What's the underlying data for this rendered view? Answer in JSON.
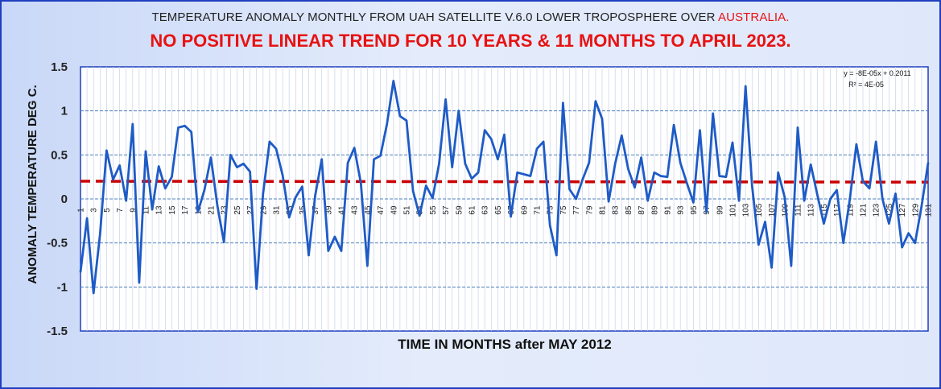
{
  "header": {
    "title_prefix": "TEMPERATURE ANOMALY MONTHLY FROM UAH SATELLITE V.6.0 LOWER TROPOSPHERE OVER ",
    "title_highlight": "AUSTRALIA.",
    "subtitle": "NO POSITIVE LINEAR TREND FOR 10 YEARS & 11 MONTHS TO APRIL 2023."
  },
  "colors": {
    "series": "#1e5bc6",
    "trend": "#cc0000",
    "grid_major": "#4f81bd",
    "grid_minor": "#c8d2e6",
    "title_highlight": "#e81212"
  },
  "chart_data": {
    "type": "line",
    "title": "TEMPERATURE ANOMALY MONTHLY FROM UAH SATELLITE V.6.0 LOWER TROPOSPHERE OVER AUSTRALIA.",
    "subtitle": "NO POSITIVE LINEAR TREND FOR 10 YEARS & 11 MONTHS TO APRIL 2023.",
    "xlabel": "TIME IN MONTHS after MAY 2012",
    "ylabel": "ANOMALY TEMPERATURE DEG C.",
    "xlim": [
      1,
      131
    ],
    "ylim": [
      -1.5,
      1.5
    ],
    "yticks": [
      1.5,
      1,
      0.5,
      0,
      -0.5,
      -1,
      -1.5
    ],
    "ytick_labels": [
      "1.5",
      "1",
      "0.5",
      "0",
      "-0.5",
      "-1",
      "-1.5"
    ],
    "xticks": [
      1,
      3,
      5,
      7,
      9,
      11,
      13,
      15,
      17,
      19,
      21,
      23,
      25,
      27,
      29,
      31,
      33,
      35,
      37,
      39,
      41,
      43,
      45,
      47,
      49,
      51,
      53,
      55,
      57,
      59,
      61,
      63,
      65,
      67,
      69,
      71,
      73,
      75,
      77,
      79,
      81,
      83,
      85,
      87,
      89,
      91,
      93,
      95,
      97,
      99,
      101,
      103,
      105,
      107,
      109,
      111,
      113,
      115,
      117,
      119,
      121,
      123,
      125,
      127,
      129,
      131
    ],
    "grid": true,
    "trendline": {
      "equation": "y = -8E-05x + 0.2011",
      "r_squared": "R² = 4E-05",
      "slope": -8e-05,
      "intercept": 0.2011,
      "style": "dashed"
    },
    "series": [
      {
        "values": [
          -0.83,
          -0.22,
          -1.07,
          -0.4,
          0.55,
          0.22,
          0.38,
          -0.02,
          0.85,
          -0.95,
          0.54,
          -0.12,
          0.37,
          0.12,
          0.25,
          0.81,
          0.83,
          0.76,
          -0.15,
          0.1,
          0.47,
          -0.08,
          -0.49,
          0.5,
          0.36,
          0.4,
          0.31,
          -1.02,
          0.06,
          0.65,
          0.57,
          0.27,
          -0.21,
          0.02,
          0.14,
          -0.64,
          0.04,
          0.45,
          -0.59,
          -0.43,
          -0.59,
          0.41,
          0.58,
          0.18,
          -0.76,
          0.45,
          0.49,
          0.85,
          1.34,
          0.94,
          0.89,
          0.09,
          -0.19,
          0.15,
          0.01,
          0.4,
          1.13,
          0.36,
          1.0,
          0.4,
          0.23,
          0.3,
          0.78,
          0.68,
          0.45,
          0.73,
          -0.2,
          0.3,
          0.28,
          0.26,
          0.57,
          0.65,
          -0.3,
          -0.64,
          1.09,
          0.11,
          0.0,
          0.22,
          0.41,
          1.11,
          0.91,
          -0.03,
          0.4,
          0.72,
          0.34,
          0.13,
          0.47,
          -0.02,
          0.3,
          0.26,
          0.25,
          0.84,
          0.41,
          0.18,
          -0.04,
          0.78,
          -0.15,
          0.97,
          0.26,
          0.25,
          0.64,
          -0.02,
          1.28,
          0.15,
          -0.52,
          -0.26,
          -0.78,
          0.3,
          0.02,
          -0.76,
          0.81,
          -0.02,
          0.39,
          0.05,
          -0.28,
          0.0,
          0.1,
          -0.5,
          0.0,
          0.62,
          0.2,
          0.12,
          0.65,
          0.0,
          -0.28,
          0.06,
          -0.55,
          -0.39,
          -0.5,
          -0.08,
          0.41
        ]
      }
    ]
  }
}
